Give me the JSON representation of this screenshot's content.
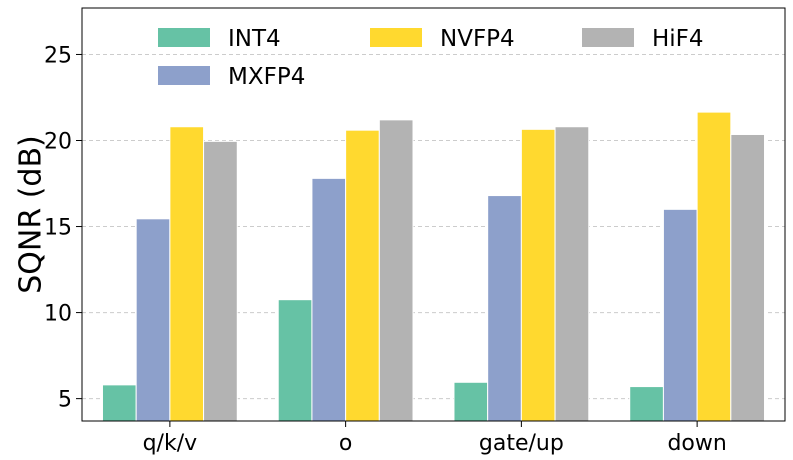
{
  "chart_data": {
    "type": "bar",
    "title": "",
    "xlabel": "",
    "ylabel": "SQNR (dB)",
    "ylim": [
      3.7,
      27.7
    ],
    "yticks": [
      5,
      10,
      15,
      20,
      25
    ],
    "grid": true,
    "legend_position": "top",
    "categories": [
      "q/k/v",
      "o",
      "gate/up",
      "down"
    ],
    "series": [
      {
        "name": "INT4",
        "color": "#66c2a5",
        "values": [
          5.8,
          10.75,
          5.95,
          5.7
        ]
      },
      {
        "name": "MXFP4",
        "color": "#8da0cb",
        "values": [
          15.45,
          17.8,
          16.8,
          16.0
        ]
      },
      {
        "name": "NVFP4",
        "color": "#ffd92f",
        "values": [
          20.8,
          20.6,
          20.65,
          21.65
        ]
      },
      {
        "name": "HiF4",
        "color": "#b3b3b3",
        "values": [
          19.95,
          21.2,
          20.8,
          20.35
        ]
      }
    ],
    "legend_order": [
      "INT4",
      "NVFP4",
      "HiF4",
      "MXFP4"
    ]
  }
}
